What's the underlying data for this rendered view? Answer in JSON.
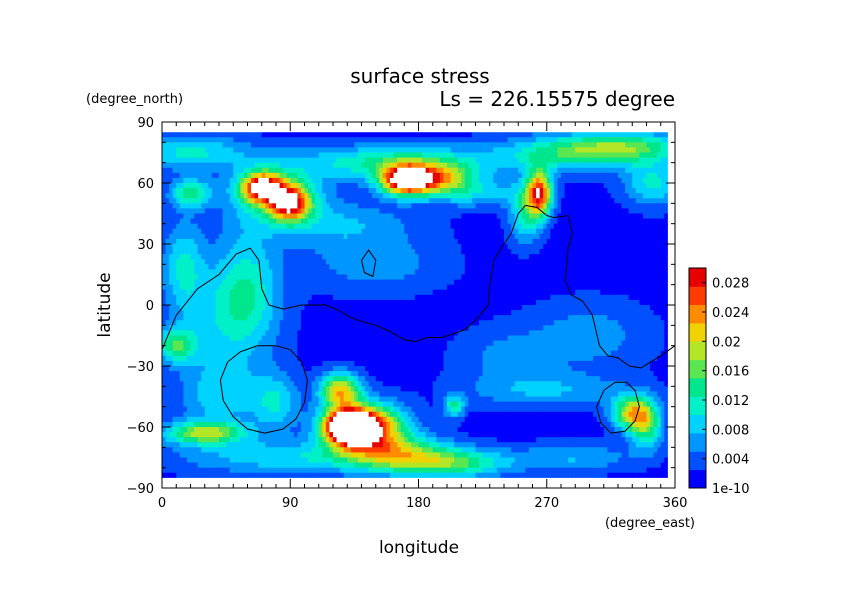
{
  "chart_data": {
    "type": "heatmap",
    "title": "surface stress",
    "subtitle": "Ls = 226.15575 degree",
    "xlabel": "longitude",
    "ylabel": "latitude",
    "x_units": "(degree_east)",
    "y_units": "(degree_north)",
    "xlim": [
      0,
      360
    ],
    "ylim": [
      -90,
      90
    ],
    "data_extent": {
      "lon": [
        0,
        355
      ],
      "lat": [
        -85,
        85
      ]
    },
    "x_ticks": [
      0,
      90,
      180,
      270,
      360
    ],
    "y_ticks": [
      -90,
      -60,
      -30,
      0,
      30,
      60,
      90
    ],
    "x_tick_labels": [
      "0",
      "90",
      "180",
      "270",
      "360"
    ],
    "y_tick_labels": [
      "−90",
      "−60",
      "−30",
      "0",
      "30",
      "60",
      "90"
    ],
    "colorbar": {
      "min": 1e-10,
      "max": 0.03,
      "tick_values": [
        1e-10,
        0.004,
        0.008,
        0.012,
        0.016,
        0.02,
        0.024,
        0.028
      ],
      "tick_labels": [
        "1e-10",
        "0.004",
        "0.008",
        "0.012",
        "0.016",
        "0.02",
        "0.024",
        "0.028"
      ],
      "colors": [
        "#0000ff",
        "#0050ff",
        "#0096ff",
        "#00d2ff",
        "#00f0c8",
        "#00e68c",
        "#5ae650",
        "#b4e628",
        "#f0d200",
        "#ff8c00",
        "#ff3c00",
        "#e60000"
      ]
    },
    "background_level": 0.0015,
    "hotspots": [
      {
        "lon": 130,
        "lat": -60,
        "value": 0.033,
        "rx": 12,
        "ry": 6
      },
      {
        "lon": 145,
        "lat": -60,
        "value": 0.025,
        "rx": 18,
        "ry": 8
      },
      {
        "lon": 125,
        "lat": -42,
        "value": 0.02,
        "rx": 10,
        "ry": 6
      },
      {
        "lon": 165,
        "lat": -72,
        "value": 0.011,
        "rx": 25,
        "ry": 6
      },
      {
        "lon": 200,
        "lat": -78,
        "value": 0.013,
        "rx": 30,
        "ry": 5
      },
      {
        "lon": 30,
        "lat": -63,
        "value": 0.016,
        "rx": 20,
        "ry": 4
      },
      {
        "lon": 95,
        "lat": -75,
        "value": 0.008,
        "rx": 60,
        "ry": 6
      },
      {
        "lon": 40,
        "lat": -45,
        "value": 0.007,
        "rx": 20,
        "ry": 12
      },
      {
        "lon": 80,
        "lat": -48,
        "value": 0.008,
        "rx": 12,
        "ry": 10
      },
      {
        "lon": 10,
        "lat": -20,
        "value": 0.012,
        "rx": 10,
        "ry": 6
      },
      {
        "lon": 45,
        "lat": -5,
        "value": 0.007,
        "rx": 25,
        "ry": 20
      },
      {
        "lon": 15,
        "lat": 20,
        "value": 0.008,
        "rx": 10,
        "ry": 15
      },
      {
        "lon": 330,
        "lat": -53,
        "value": 0.018,
        "rx": 10,
        "ry": 6
      },
      {
        "lon": 340,
        "lat": -60,
        "value": 0.012,
        "rx": 8,
        "ry": 8
      },
      {
        "lon": 205,
        "lat": -50,
        "value": 0.011,
        "rx": 5,
        "ry": 4
      },
      {
        "lon": 270,
        "lat": -42,
        "value": 0.006,
        "rx": 40,
        "ry": 6
      },
      {
        "lon": 290,
        "lat": -75,
        "value": 0.006,
        "rx": 30,
        "ry": 5
      },
      {
        "lon": 70,
        "lat": 58,
        "value": 0.024,
        "rx": 10,
        "ry": 5
      },
      {
        "lon": 90,
        "lat": 50,
        "value": 0.022,
        "rx": 10,
        "ry": 6
      },
      {
        "lon": 80,
        "lat": 55,
        "value": 0.012,
        "rx": 22,
        "ry": 9
      },
      {
        "lon": 170,
        "lat": 61,
        "value": 0.025,
        "rx": 12,
        "ry": 5
      },
      {
        "lon": 190,
        "lat": 62,
        "value": 0.018,
        "rx": 18,
        "ry": 5
      },
      {
        "lon": 165,
        "lat": 70,
        "value": 0.012,
        "rx": 50,
        "ry": 6
      },
      {
        "lon": 265,
        "lat": 55,
        "value": 0.025,
        "rx": 6,
        "ry": 8
      },
      {
        "lon": 255,
        "lat": 45,
        "value": 0.01,
        "rx": 8,
        "ry": 10
      },
      {
        "lon": 290,
        "lat": 75,
        "value": 0.012,
        "rx": 35,
        "ry": 6
      },
      {
        "lon": 220,
        "lat": 55,
        "value": 0.007,
        "rx": 25,
        "ry": 5
      },
      {
        "lon": 20,
        "lat": 75,
        "value": 0.009,
        "rx": 30,
        "ry": 6
      },
      {
        "lon": 20,
        "lat": 55,
        "value": 0.012,
        "rx": 10,
        "ry": 5
      },
      {
        "lon": 345,
        "lat": 60,
        "value": 0.009,
        "rx": 15,
        "ry": 8
      },
      {
        "lon": 330,
        "lat": 78,
        "value": 0.01,
        "rx": 30,
        "ry": 5
      },
      {
        "lon": 120,
        "lat": 40,
        "value": 0.006,
        "rx": 40,
        "ry": 8
      },
      {
        "lon": 150,
        "lat": 20,
        "value": 0.005,
        "rx": 35,
        "ry": 10
      },
      {
        "lon": 60,
        "lat": 10,
        "value": 0.007,
        "rx": 15,
        "ry": 20
      },
      {
        "lon": 300,
        "lat": -15,
        "value": 0.005,
        "rx": 30,
        "ry": 12
      },
      {
        "lon": 240,
        "lat": -25,
        "value": 0.004,
        "rx": 25,
        "ry": 10
      }
    ],
    "contours": [
      {
        "name": "highland-boundary",
        "points": [
          [
            0,
            -22
          ],
          [
            10,
            -5
          ],
          [
            25,
            8
          ],
          [
            40,
            15
          ],
          [
            52,
            25
          ],
          [
            62,
            28
          ],
          [
            68,
            22
          ],
          [
            70,
            8
          ],
          [
            75,
            0
          ],
          [
            85,
            -2
          ],
          [
            98,
            0
          ],
          [
            115,
            0
          ],
          [
            125,
            -3
          ],
          [
            132,
            -6
          ],
          [
            140,
            -8
          ],
          [
            150,
            -10
          ],
          [
            160,
            -13
          ],
          [
            170,
            -17
          ],
          [
            178,
            -18
          ],
          [
            186,
            -16
          ],
          [
            196,
            -16
          ],
          [
            205,
            -14
          ],
          [
            213,
            -12
          ],
          [
            222,
            -6
          ],
          [
            229,
            0
          ],
          [
            230,
            10
          ],
          [
            233,
            22
          ],
          [
            238,
            28
          ],
          [
            245,
            35
          ],
          [
            250,
            45
          ],
          [
            255,
            49
          ],
          [
            263,
            48
          ],
          [
            270,
            44
          ],
          [
            275,
            43
          ],
          [
            285,
            44
          ],
          [
            288,
            35
          ],
          [
            285,
            28
          ],
          [
            283,
            12
          ],
          [
            287,
            5
          ],
          [
            295,
            2
          ],
          [
            302,
            -5
          ],
          [
            307,
            -20
          ],
          [
            313,
            -25
          ],
          [
            320,
            -26
          ],
          [
            328,
            -30
          ],
          [
            336,
            -31
          ],
          [
            343,
            -28
          ],
          [
            350,
            -25
          ],
          [
            360,
            -20
          ]
        ]
      },
      {
        "name": "hellas-basin",
        "points": [
          [
            80,
            -20
          ],
          [
            90,
            -22
          ],
          [
            98,
            -28
          ],
          [
            102,
            -37
          ],
          [
            100,
            -48
          ],
          [
            94,
            -56
          ],
          [
            85,
            -61
          ],
          [
            72,
            -63
          ],
          [
            60,
            -61
          ],
          [
            50,
            -55
          ],
          [
            43,
            -47
          ],
          [
            41,
            -37
          ],
          [
            46,
            -28
          ],
          [
            55,
            -23
          ],
          [
            67,
            -20
          ]
        ]
      },
      {
        "name": "argyre-basin",
        "points": [
          [
            326,
            -38
          ],
          [
            332,
            -42
          ],
          [
            335,
            -50
          ],
          [
            332,
            -57
          ],
          [
            325,
            -62
          ],
          [
            315,
            -63
          ],
          [
            308,
            -58
          ],
          [
            305,
            -50
          ],
          [
            310,
            -42
          ],
          [
            318,
            -38
          ]
        ]
      },
      {
        "name": "elysium-patch",
        "points": [
          [
            145,
            27
          ],
          [
            150,
            22
          ],
          [
            148,
            14
          ],
          [
            142,
            16
          ],
          [
            140,
            22
          ]
        ]
      }
    ]
  }
}
